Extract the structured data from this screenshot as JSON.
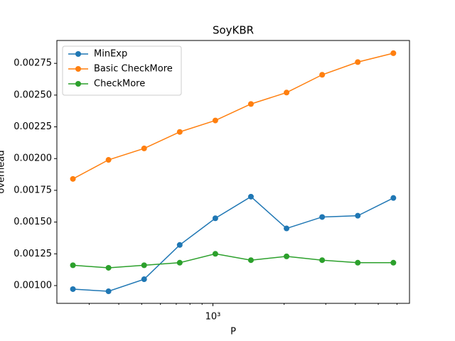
{
  "chart_data": {
    "type": "line",
    "title": "SoyKBR",
    "x_label": "P",
    "y_label": "overhead",
    "x": [
      256,
      362,
      512,
      724,
      1024,
      1448,
      2048,
      2896,
      4096,
      5793
    ],
    "xscale": "log",
    "xlim": [
      219,
      6777
    ],
    "xticks": [
      {
        "value": 1000,
        "label": "10³"
      }
    ],
    "xminorticks": [
      300,
      400,
      500,
      600,
      700,
      800,
      900,
      2000,
      3000,
      4000,
      5000,
      6000
    ],
    "ylim": [
      0.00086,
      0.00293
    ],
    "yticks": [
      {
        "value": 0.001,
        "label": "0.00100"
      },
      {
        "value": 0.00125,
        "label": "0.00125"
      },
      {
        "value": 0.0015,
        "label": "0.00150"
      },
      {
        "value": 0.00175,
        "label": "0.00175"
      },
      {
        "value": 0.002,
        "label": "0.00200"
      },
      {
        "value": 0.00225,
        "label": "0.00225"
      },
      {
        "value": 0.0025,
        "label": "0.00250"
      },
      {
        "value": 0.00275,
        "label": "0.00275"
      }
    ],
    "legend": "upper left",
    "series": [
      {
        "name": "MinExp",
        "color": "#1f77b4",
        "values": [
          0.000972,
          0.000955,
          0.00105,
          0.00132,
          0.00153,
          0.0017,
          0.00145,
          0.00154,
          0.00155,
          0.00169
        ]
      },
      {
        "name": "Basic CheckMore",
        "color": "#ff7f0e",
        "values": [
          0.00184,
          0.00199,
          0.00208,
          0.00221,
          0.0023,
          0.00243,
          0.00252,
          0.00266,
          0.00276,
          0.00283
        ]
      },
      {
        "name": "CheckMore",
        "color": "#2ca02c",
        "values": [
          0.00116,
          0.00114,
          0.00116,
          0.00118,
          0.00125,
          0.0012,
          0.00123,
          0.0012,
          0.00118,
          0.00118
        ]
      }
    ]
  }
}
